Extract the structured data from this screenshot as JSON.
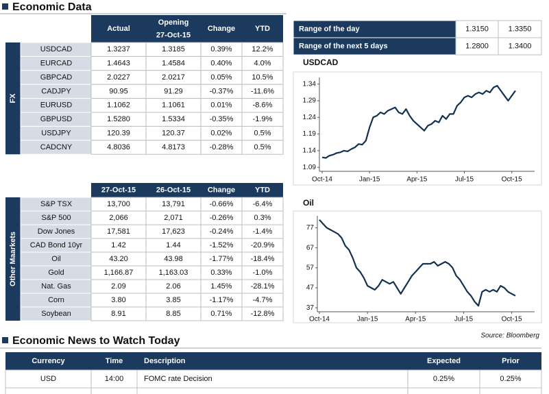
{
  "header": {
    "title": "Economic Data"
  },
  "fx_table": {
    "side_label": "FX",
    "headers": [
      "Actual",
      "Opening",
      "Change",
      "YTD"
    ],
    "opening_date": "27-Oct-15",
    "rows": [
      [
        "USDCAD",
        "1.3237",
        "1.3185",
        "0.39%",
        "12.2%"
      ],
      [
        "EURCAD",
        "1.4643",
        "1.4584",
        "0.40%",
        "4.0%"
      ],
      [
        "GBPCAD",
        "2.0227",
        "2.0217",
        "0.05%",
        "10.5%"
      ],
      [
        "CADJPY",
        "90.95",
        "91.29",
        "-0.37%",
        "-11.6%"
      ],
      [
        "EURUSD",
        "1.1062",
        "1.1061",
        "0.01%",
        "-8.6%"
      ],
      [
        "GBPUSD",
        "1.5280",
        "1.5334",
        "-0.35%",
        "-1.9%"
      ],
      [
        "USDJPY",
        "120.39",
        "120.37",
        "0.02%",
        "0.5%"
      ],
      [
        "CADCNY",
        "4.8036",
        "4.8173",
        "-0.28%",
        "0.5%"
      ]
    ]
  },
  "range_table": {
    "rows": [
      [
        "Range of the day",
        "1.3150",
        "1.3350"
      ],
      [
        "Range of the next 5 days",
        "1.2800",
        "1.3400"
      ]
    ]
  },
  "markets_table": {
    "side_label": "Other Maarkets",
    "headers": [
      "27-Oct-15",
      "26-Oct-15",
      "Change",
      "YTD"
    ],
    "rows": [
      [
        "S&P TSX",
        "13,700",
        "13,791",
        "-0.66%",
        "-6.4%"
      ],
      [
        "S&P 500",
        "2,066",
        "2,071",
        "-0.26%",
        "0.3%"
      ],
      [
        "Dow Jones",
        "17,581",
        "17,623",
        "-0.24%",
        "-1.4%"
      ],
      [
        "CAD Bond 10yr",
        "1.42",
        "1.44",
        "-1.52%",
        "-20.9%"
      ],
      [
        "Oil",
        "43.20",
        "43.98",
        "-1.77%",
        "-18.4%"
      ],
      [
        "Gold",
        "1,166.87",
        "1,163.03",
        "0.33%",
        "-1.0%"
      ],
      [
        "Nat. Gas",
        "2.09",
        "2.06",
        "1.45%",
        "-28.1%"
      ],
      [
        "Corn",
        "3.80",
        "3.85",
        "-1.17%",
        "-4.7%"
      ],
      [
        "Soybean",
        "8.91",
        "8.85",
        "0.71%",
        "-12.8%"
      ]
    ]
  },
  "chart_data": [
    {
      "type": "line",
      "title": "USDCAD",
      "color": "#12304f",
      "categories": [
        "Oct-14",
        null,
        null,
        null,
        null,
        null,
        null,
        null,
        null,
        null,
        null,
        null,
        null,
        "Jan-15",
        null,
        null,
        null,
        null,
        null,
        null,
        null,
        null,
        null,
        null,
        null,
        null,
        "Apr-15",
        null,
        null,
        null,
        null,
        null,
        null,
        null,
        null,
        null,
        null,
        null,
        null,
        "Jul-15",
        null,
        null,
        null,
        null,
        null,
        null,
        null,
        null,
        null,
        null,
        null,
        null,
        "Oct-15",
        null
      ],
      "values": [
        1.12,
        1.118,
        1.125,
        1.128,
        1.133,
        1.135,
        1.14,
        1.138,
        1.145,
        1.15,
        1.16,
        1.158,
        1.17,
        1.21,
        1.24,
        1.245,
        1.255,
        1.25,
        1.26,
        1.265,
        1.27,
        1.255,
        1.25,
        1.265,
        1.245,
        1.23,
        1.22,
        1.21,
        1.2,
        1.215,
        1.22,
        1.23,
        1.225,
        1.245,
        1.235,
        1.25,
        1.25,
        1.275,
        1.285,
        1.3,
        1.305,
        1.3,
        1.31,
        1.315,
        1.31,
        1.32,
        1.315,
        1.33,
        1.335,
        1.32,
        1.305,
        1.29,
        1.305,
        1.32
      ],
      "ylim": [
        1.078,
        1.36
      ],
      "yticks": [
        1.09,
        1.14,
        1.19,
        1.24,
        1.29,
        1.34
      ]
    },
    {
      "type": "line",
      "title": "Oil",
      "color": "#12304f",
      "categories": [
        "Oct-14",
        null,
        null,
        null,
        null,
        null,
        null,
        null,
        null,
        null,
        null,
        null,
        null,
        "Jan-15",
        null,
        null,
        null,
        null,
        null,
        null,
        null,
        null,
        null,
        null,
        null,
        null,
        "Apr-15",
        null,
        null,
        null,
        null,
        null,
        null,
        null,
        null,
        null,
        null,
        null,
        null,
        "Jul-15",
        null,
        null,
        null,
        null,
        null,
        null,
        null,
        null,
        null,
        null,
        null,
        null,
        "Oct-15",
        null
      ],
      "values": [
        81,
        79,
        77,
        76,
        75,
        74,
        72,
        68,
        66,
        62,
        57,
        55,
        52,
        48,
        47,
        46,
        48,
        51,
        50,
        49,
        50,
        47,
        44,
        47,
        50,
        53,
        55,
        57,
        59,
        59,
        59,
        60,
        58,
        59,
        60,
        59,
        57,
        53,
        51,
        48,
        45,
        43,
        40,
        38,
        45,
        46,
        45,
        46,
        45,
        48,
        47,
        45,
        44,
        43
      ],
      "ylim": [
        35,
        83
      ],
      "yticks": [
        37,
        47,
        57,
        67,
        77
      ]
    }
  ],
  "source": "Source: Bloomberg",
  "news": {
    "title": "Economic News to Watch Today",
    "headers": [
      "Currency",
      "Time",
      "Description",
      "Expected",
      "Prior"
    ],
    "rows": [
      [
        "USD",
        "14:00",
        "FOMC rate Decision",
        "0.25%",
        "0.25%"
      ]
    ]
  }
}
